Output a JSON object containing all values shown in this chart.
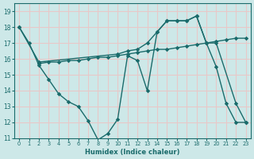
{
  "xlabel": "Humidex (Indice chaleur)",
  "background_color": "#cde8e8",
  "grid_color": "#e8c8c8",
  "line_color": "#1a6b6b",
  "xlim": [
    -0.5,
    23.5
  ],
  "ylim": [
    11,
    19.5
  ],
  "yticks": [
    11,
    12,
    13,
    14,
    15,
    16,
    17,
    18,
    19
  ],
  "xticks": [
    0,
    1,
    2,
    3,
    4,
    5,
    6,
    7,
    8,
    9,
    10,
    11,
    12,
    13,
    14,
    15,
    16,
    17,
    18,
    19,
    20,
    21,
    22,
    23
  ],
  "line1_x": [
    0,
    1,
    2,
    3,
    4,
    5,
    6,
    7,
    8,
    9,
    10,
    11,
    12,
    13,
    14,
    15,
    16,
    17,
    18,
    19,
    20,
    21,
    22,
    23
  ],
  "line1_y": [
    18.0,
    17.0,
    15.6,
    14.7,
    13.8,
    13.3,
    13.0,
    12.1,
    10.9,
    11.3,
    12.2,
    16.2,
    15.9,
    14.0,
    17.7,
    18.4,
    18.4,
    18.4,
    18.7,
    17.0,
    15.5,
    13.2,
    12.0,
    12.0
  ],
  "line2_x": [
    0,
    2,
    10,
    11,
    12,
    13,
    14,
    15,
    16,
    17,
    18,
    19,
    20,
    22,
    23
  ],
  "line2_y": [
    18.0,
    15.8,
    16.3,
    16.5,
    16.6,
    17.0,
    17.7,
    18.4,
    18.4,
    18.4,
    18.7,
    17.0,
    17.0,
    13.2,
    12.0
  ],
  "line3_x": [
    2,
    3,
    4,
    5,
    6,
    7,
    8,
    9,
    10,
    11,
    12,
    13,
    14,
    15,
    16,
    17,
    18,
    19,
    20,
    21,
    22,
    23
  ],
  "line3_y": [
    15.7,
    15.8,
    15.8,
    15.9,
    15.9,
    16.0,
    16.1,
    16.1,
    16.2,
    16.3,
    16.4,
    16.5,
    16.6,
    16.6,
    16.7,
    16.8,
    16.9,
    17.0,
    17.1,
    17.2,
    17.3,
    17.3
  ]
}
